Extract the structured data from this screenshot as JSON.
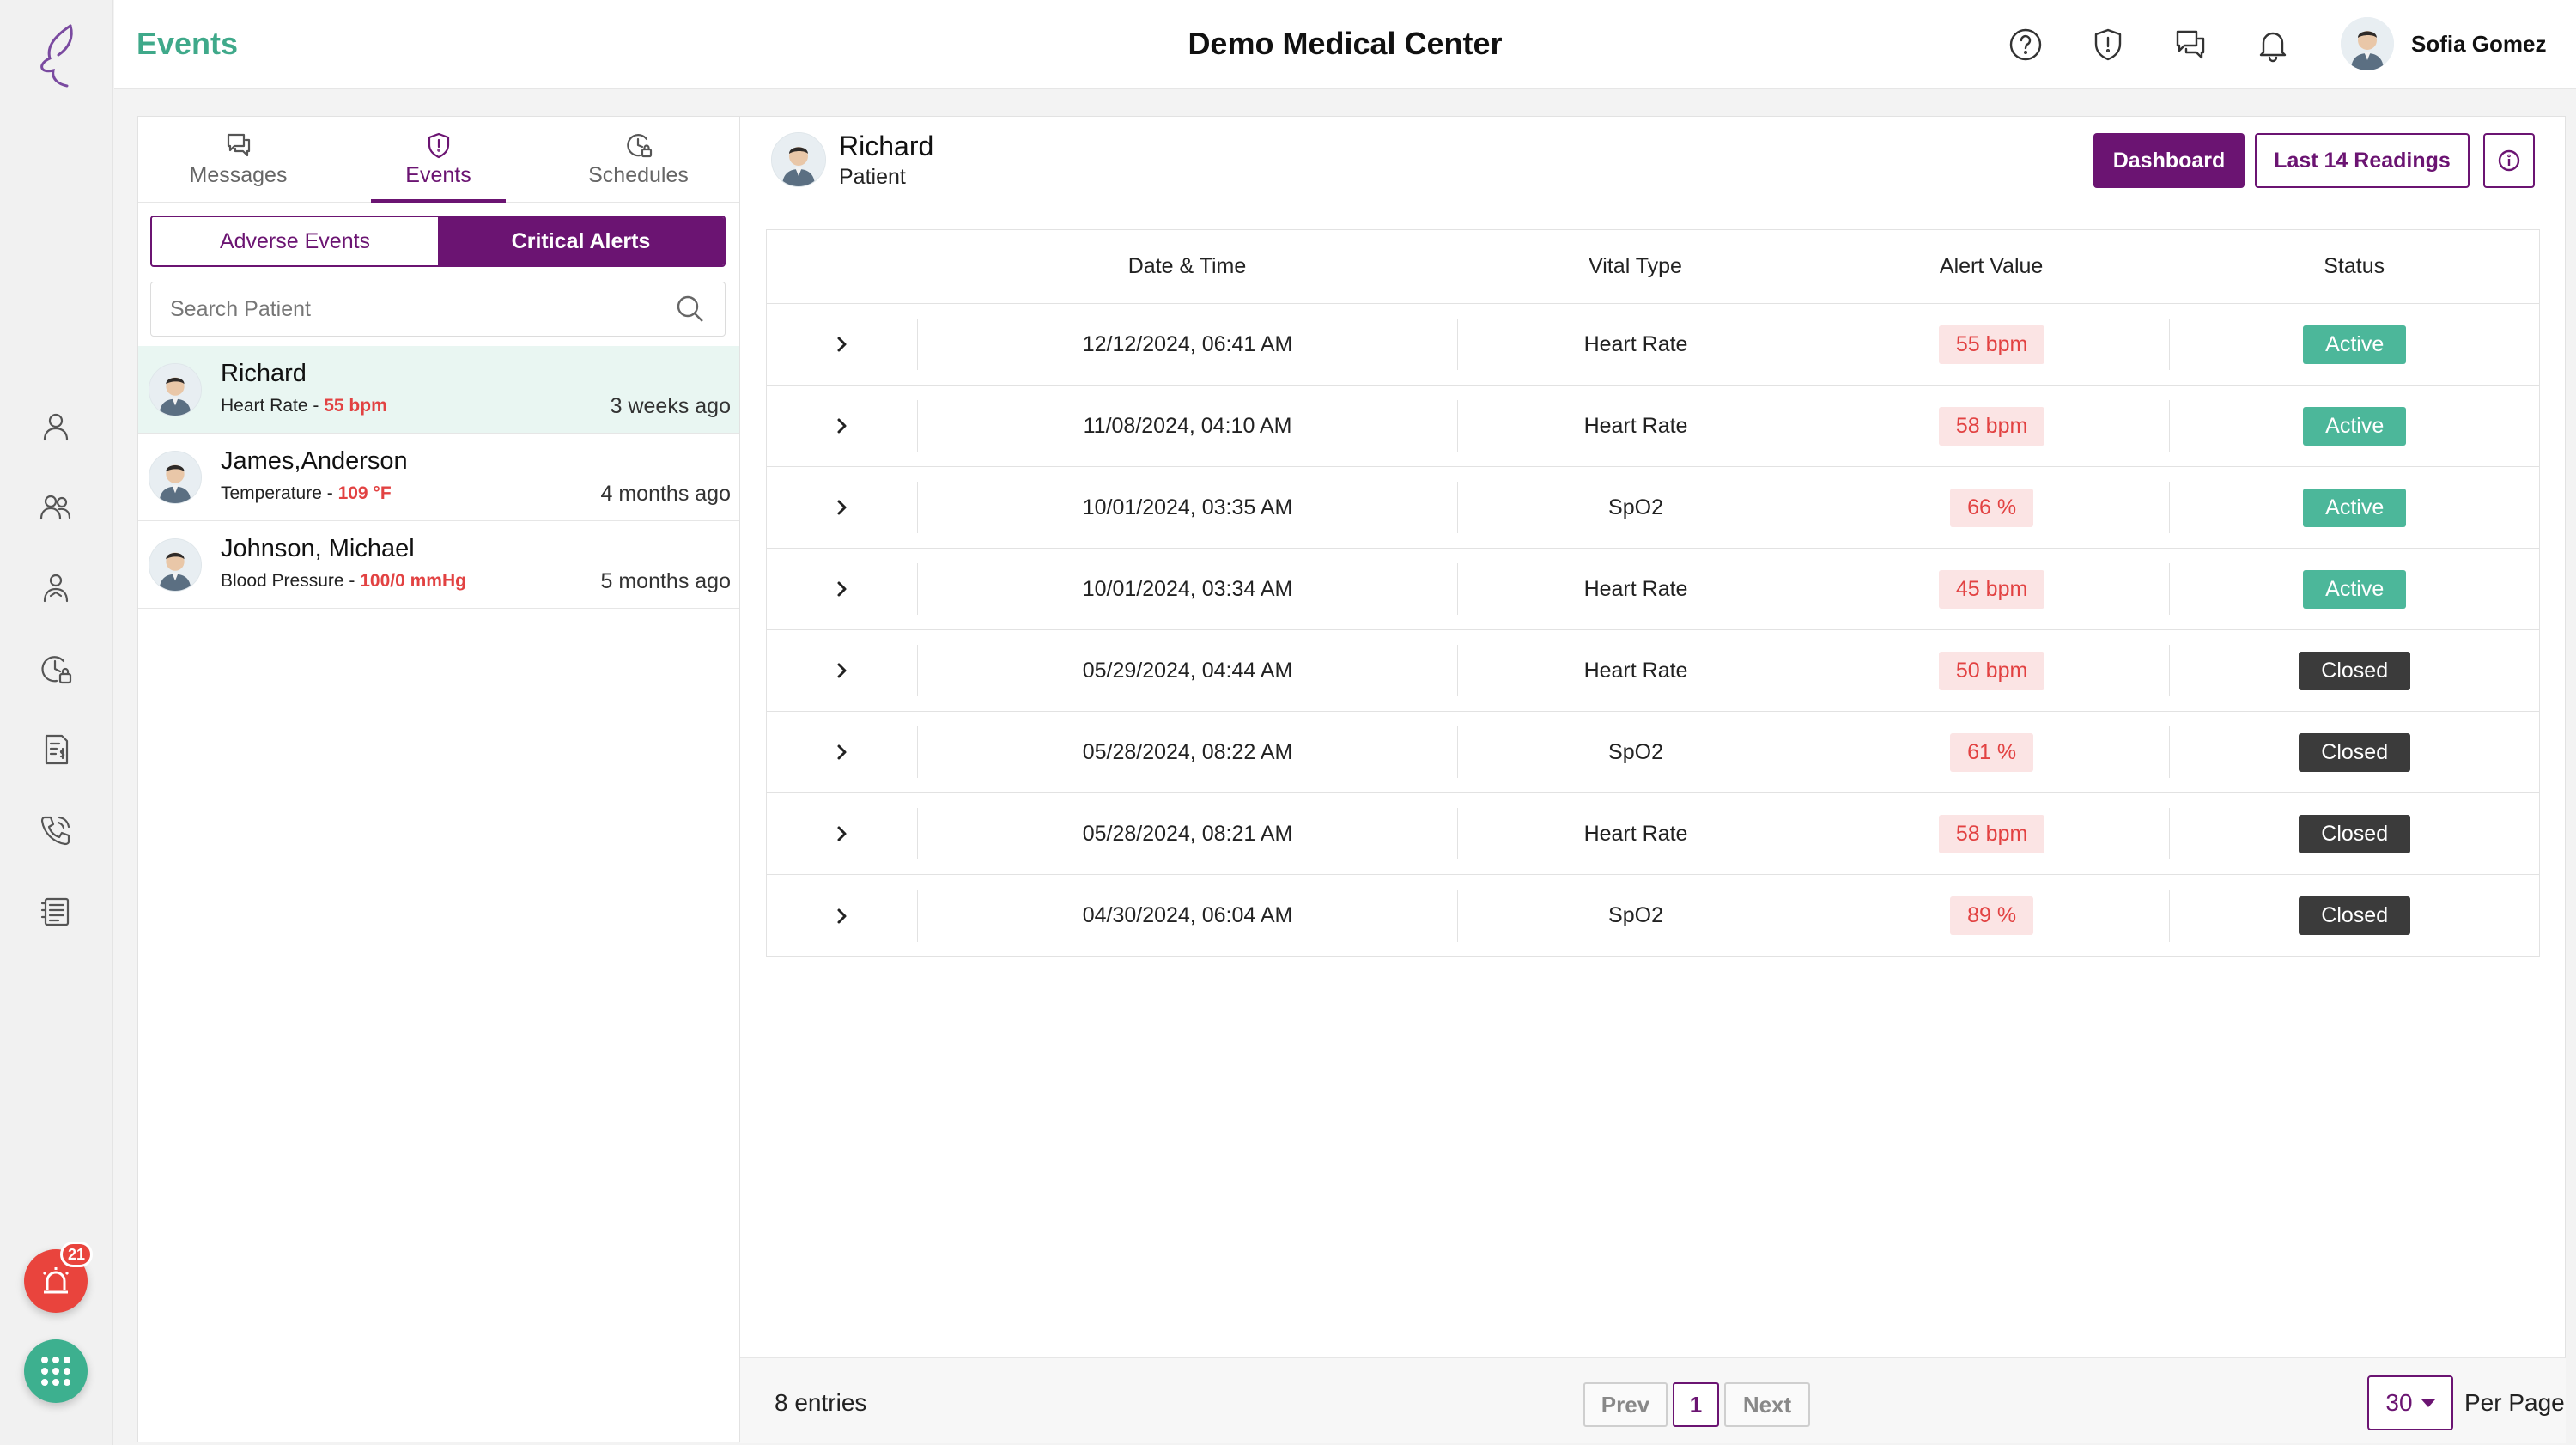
{
  "app": {
    "page_title": "Events",
    "center_name": "Demo Medical Center",
    "user_name": "Sofia Gomez",
    "accent_color": "#6b1472",
    "brand_color": "#3fa98a"
  },
  "rail": {
    "icons": [
      "person-icon",
      "group-icon",
      "caregiver-icon",
      "clock-lock-icon",
      "billing-icon",
      "phone-icon",
      "notes-icon"
    ],
    "alarm_badge": "21"
  },
  "topbar": {
    "icons": [
      "help-icon",
      "shield-alert-icon",
      "chat-icon",
      "bell-icon"
    ]
  },
  "left_panel": {
    "tabs": [
      {
        "label": "Messages",
        "icon": "chat-icon",
        "active": false
      },
      {
        "label": "Events",
        "icon": "shield-icon",
        "active": true
      },
      {
        "label": "Schedules",
        "icon": "schedule-icon",
        "active": false
      }
    ],
    "segments": [
      {
        "label": "Adverse Events",
        "active": false
      },
      {
        "label": "Critical Alerts",
        "active": true
      }
    ],
    "search_placeholder": "Search Patient",
    "patients": [
      {
        "name": "Richard",
        "vital_label": "Heart Rate - ",
        "vital_value": "55 bpm",
        "time": "3 weeks ago",
        "selected": true
      },
      {
        "name": "James,Anderson",
        "vital_label": "Temperature - ",
        "vital_value": "109 °F",
        "time": "4 months ago",
        "selected": false
      },
      {
        "name": "Johnson, Michael",
        "vital_label": "Blood Pressure - ",
        "vital_value": "100/0 mmHg",
        "time": "5 months ago",
        "selected": false
      }
    ]
  },
  "right_panel": {
    "patient_name": "Richard",
    "patient_role": "Patient",
    "dashboard_label": "Dashboard",
    "last_readings_label": "Last 14 Readings",
    "table": {
      "headers": [
        "Date & Time",
        "Vital Type",
        "Alert Value",
        "Status"
      ],
      "rows": [
        {
          "datetime": "12/12/2024, 06:41 AM",
          "vital": "Heart Rate",
          "value": "55 bpm",
          "status": "Active"
        },
        {
          "datetime": "11/08/2024, 04:10 AM",
          "vital": "Heart Rate",
          "value": "58 bpm",
          "status": "Active"
        },
        {
          "datetime": "10/01/2024, 03:35 AM",
          "vital": "SpO2",
          "value": "66 %",
          "status": "Active"
        },
        {
          "datetime": "10/01/2024, 03:34 AM",
          "vital": "Heart Rate",
          "value": "45 bpm",
          "status": "Active"
        },
        {
          "datetime": "05/29/2024, 04:44 AM",
          "vital": "Heart Rate",
          "value": "50 bpm",
          "status": "Closed"
        },
        {
          "datetime": "05/28/2024, 08:22 AM",
          "vital": "SpO2",
          "value": "61 %",
          "status": "Closed"
        },
        {
          "datetime": "05/28/2024, 08:21 AM",
          "vital": "Heart Rate",
          "value": "58 bpm",
          "status": "Closed"
        },
        {
          "datetime": "04/30/2024, 06:04 AM",
          "vital": "SpO2",
          "value": "89 %",
          "status": "Closed"
        }
      ]
    },
    "footer": {
      "entries": "8 entries",
      "prev": "Prev",
      "page": "1",
      "next": "Next",
      "per_page_value": "30",
      "per_page_label": "Per Page"
    }
  }
}
